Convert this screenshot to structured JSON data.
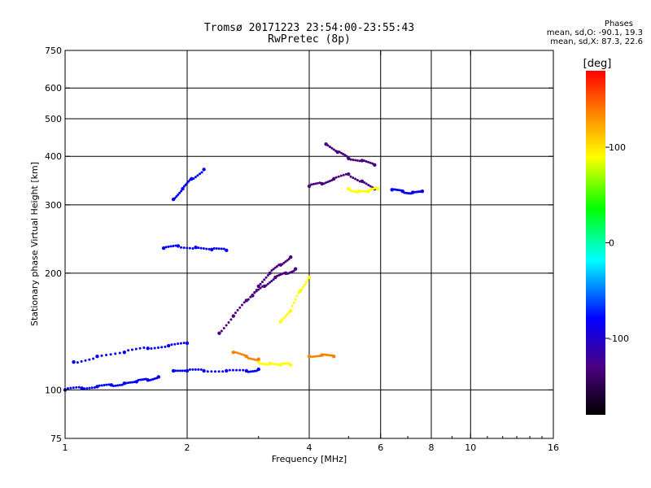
{
  "chart_data": {
    "type": "scatter",
    "title": "Tromsø 20171223 23:54:00-23:55:43",
    "subtitle": "RwPretec (8p)",
    "xlabel": "Frequency [MHz]",
    "ylabel": "Stationary phase Virtual Height [km]",
    "x_scale": "log",
    "y_scale": "log",
    "xlim": [
      1,
      16
    ],
    "ylim": [
      75,
      750
    ],
    "x_ticks": [
      1,
      2,
      4,
      6,
      8,
      10,
      16
    ],
    "x_tick_labels": [
      "1",
      "2",
      "4",
      "6",
      "8",
      "10",
      "16"
    ],
    "y_ticks": [
      75,
      100,
      200,
      300,
      400,
      500,
      600,
      750
    ],
    "y_tick_labels": [
      "75",
      "100",
      "200",
      "300",
      "400",
      "500",
      "600",
      "750"
    ],
    "x_grid": [
      2,
      4,
      6,
      8,
      10
    ],
    "y_grid": [
      100,
      200,
      300,
      400,
      500,
      600
    ],
    "grid": true,
    "phase_legend": {
      "heading": "Phases",
      "line_o": "mean, sd,O: -90.1, 19.3",
      "line_x": "mean, sd,X:  87.3, 22.6"
    },
    "colorbar": {
      "label": "[deg]",
      "range": [
        -180,
        180
      ],
      "ticks": [
        100,
        0,
        -100
      ],
      "tick_labels": [
        "100",
        "0",
        "-100"
      ],
      "colors": [
        "#000000",
        "#4b0082",
        "#0000ff",
        "#00ffff",
        "#00ff00",
        "#ffff00",
        "#ff8000",
        "#ff0000"
      ]
    },
    "echo_traces": [
      {
        "name": "",
        "x": [
          1.0,
          1.1,
          1.2,
          1.3,
          1.4,
          1.5,
          1.6,
          1.7
        ],
        "y": [
          100,
          101,
          102,
          103,
          104,
          105,
          106,
          108
        ],
        "phase": -90
      },
      {
        "name": "",
        "x": [
          1.85,
          2.0,
          2.2,
          2.5,
          2.8,
          3.0
        ],
        "y": [
          112,
          112,
          112,
          112,
          112,
          113
        ],
        "phase": -100
      },
      {
        "name": "",
        "x": [
          1.05,
          1.2,
          1.4,
          1.6,
          1.8,
          2.0
        ],
        "y": [
          118,
          122,
          125,
          128,
          130,
          132
        ],
        "phase": -95
      },
      {
        "name": "",
        "x": [
          1.75,
          1.9,
          2.1,
          2.3,
          2.5
        ],
        "y": [
          232,
          235,
          233,
          230,
          229
        ],
        "phase": -100
      },
      {
        "name": "",
        "x": [
          2.4,
          2.6,
          2.8,
          3.0,
          3.2,
          3.4,
          3.6
        ],
        "y": [
          140,
          155,
          170,
          185,
          200,
          210,
          220
        ],
        "phase": -105
      },
      {
        "name": "",
        "x": [
          2.9,
          3.1,
          3.3,
          3.5,
          3.7
        ],
        "y": [
          175,
          185,
          195,
          200,
          205
        ],
        "phase": -125
      },
      {
        "name": "",
        "x": [
          3.4,
          3.6,
          3.8,
          4.0
        ],
        "y": [
          150,
          160,
          180,
          195
        ],
        "phase": 80
      },
      {
        "name": "",
        "x": [
          3.0,
          3.2,
          3.4,
          3.6
        ],
        "y": [
          118,
          117,
          116,
          116
        ],
        "phase": 100
      },
      {
        "name": "",
        "x": [
          2.6,
          2.8,
          3.0
        ],
        "y": [
          125,
          122,
          120
        ],
        "phase": 120
      },
      {
        "name": "",
        "x": [
          1.85,
          1.95,
          2.05,
          2.2
        ],
        "y": [
          310,
          330,
          350,
          370
        ],
        "phase": -90
      },
      {
        "name": "",
        "x": [
          4.0,
          4.3,
          4.6,
          5.0,
          5.4,
          5.8
        ],
        "y": [
          335,
          340,
          350,
          360,
          345,
          330
        ],
        "phase": -110
      },
      {
        "name": "",
        "x": [
          4.4,
          4.7,
          5.0,
          5.4,
          5.8
        ],
        "y": [
          430,
          410,
          395,
          390,
          380
        ],
        "phase": -110
      },
      {
        "name": "",
        "x": [
          5.0,
          5.3,
          5.6,
          5.9
        ],
        "y": [
          330,
          325,
          325,
          330
        ],
        "phase": 90
      },
      {
        "name": "",
        "x": [
          6.4,
          6.8,
          7.2,
          7.6
        ],
        "y": [
          328,
          325,
          323,
          325
        ],
        "phase": -100
      },
      {
        "name": "",
        "x": [
          4.0,
          4.3,
          4.6
        ],
        "y": [
          122,
          123,
          122
        ],
        "phase": 110
      }
    ]
  }
}
